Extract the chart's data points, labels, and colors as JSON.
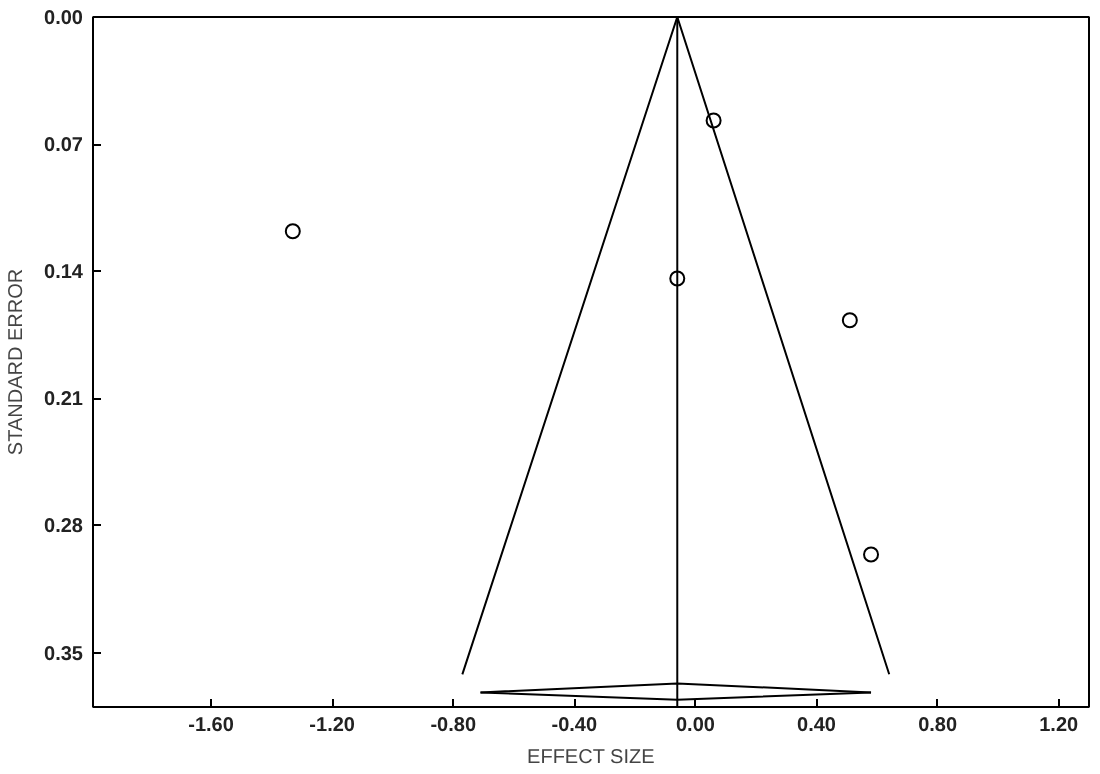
{
  "chart_data": {
    "type": "scatter",
    "xlabel": "EFFECT SIZE",
    "ylabel": "STANDARD ERROR",
    "xlim": [
      -1.99,
      1.3
    ],
    "ylim": [
      0.38,
      0
    ],
    "xticks": [
      {
        "value": -1.6,
        "label": "-1.60"
      },
      {
        "value": -1.2,
        "label": "-1.20"
      },
      {
        "value": -0.8,
        "label": "-0.80"
      },
      {
        "value": -0.4,
        "label": "-0.40"
      },
      {
        "value": 0,
        "label": "0.00"
      },
      {
        "value": 0.4,
        "label": "0.40"
      },
      {
        "value": 0.8,
        "label": "0.80"
      },
      {
        "value": 1.2,
        "label": "1.20"
      }
    ],
    "yticks": [
      {
        "value": 0,
        "label": "0.00"
      },
      {
        "value": 0.07,
        "label": "0.07"
      },
      {
        "value": 0.14,
        "label": "0.14"
      },
      {
        "value": 0.21,
        "label": "0.21"
      },
      {
        "value": 0.28,
        "label": "0.28"
      },
      {
        "value": 0.35,
        "label": "0.35"
      }
    ],
    "grid": false,
    "marker": "circle",
    "series": [
      {
        "color": "#000000",
        "x": [
          -1.33,
          0.06,
          -0.06,
          0.51,
          0.58
        ],
        "values": [
          0.118,
          0.057,
          0.144,
          0.167,
          0.296
        ]
      },
      {
        "type": "line",
        "marker": "none",
        "color": "#000000",
        "x": [
          -0.77,
          -0.06,
          0.64
        ],
        "values": [
          0.362,
          0,
          0.362
        ]
      },
      {
        "type": "line",
        "marker": "none",
        "color": "#000000",
        "x": [
          -0.71,
          -0.06,
          0.58
        ],
        "values": [
          0.372,
          0.367,
          0.372
        ]
      },
      {
        "type": "line",
        "marker": "none",
        "color": "#000000",
        "x": [
          -0.71,
          -0.06,
          0.58
        ],
        "values": [
          0.372,
          0.376,
          0.372
        ]
      }
    ],
    "ref_lines": [
      {
        "axis": "x",
        "value": -0.06,
        "color": "#000000",
        "line_style": "solid"
      }
    ]
  }
}
